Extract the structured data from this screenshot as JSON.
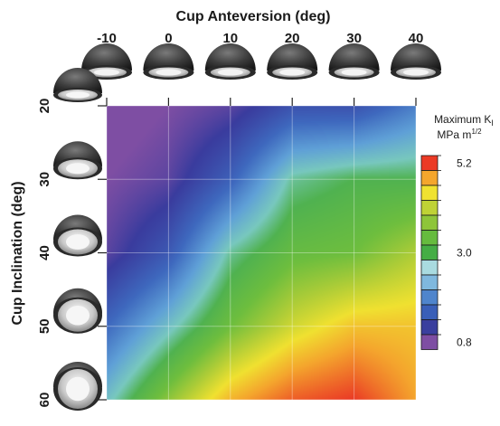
{
  "chart_data": {
    "type": "heatmap",
    "title": "",
    "xlabel": "Cup Anteversion (deg)",
    "ylabel": "Cup Inclination (deg)",
    "x_ticks": [
      "-10",
      "0",
      "10",
      "20",
      "30",
      "40"
    ],
    "y_ticks": [
      "20",
      "30",
      "40",
      "50",
      "60"
    ],
    "x_values": [
      -10,
      0,
      10,
      20,
      30,
      40
    ],
    "y_values": [
      20,
      30,
      40,
      50,
      60
    ],
    "xlim": [
      -10,
      40
    ],
    "ylim": [
      20,
      60
    ],
    "z": [
      [
        0.6,
        0.8,
        1.0,
        1.5,
        1.5,
        2.0
      ],
      [
        0.8,
        1.0,
        1.7,
        2.8,
        3.0,
        3.0
      ],
      [
        1.0,
        1.6,
        2.8,
        3.3,
        3.4,
        3.8
      ],
      [
        1.8,
        2.6,
        3.4,
        4.0,
        4.4,
        4.4
      ],
      [
        2.6,
        3.6,
        4.5,
        5.0,
        5.2,
        4.6
      ]
    ],
    "colorbar": {
      "title": "Maximum K",
      "title_sub": "I",
      "unit": "MPa m",
      "unit_sup": "1/2",
      "tick_labels": [
        "5.2",
        "3.0",
        "0.8"
      ],
      "tick_values": [
        5.2,
        3.0,
        0.8
      ],
      "range": [
        0.8,
        5.2
      ],
      "colors": [
        "#7e4ea3",
        "#3a3f9e",
        "#3a5fb8",
        "#4f85cc",
        "#7fb8de",
        "#a9dbe0",
        "#45ad45",
        "#66bb3e",
        "#8ec53a",
        "#bfd236",
        "#f0e230",
        "#f4a62d",
        "#eb3a25"
      ]
    },
    "grid": true
  }
}
